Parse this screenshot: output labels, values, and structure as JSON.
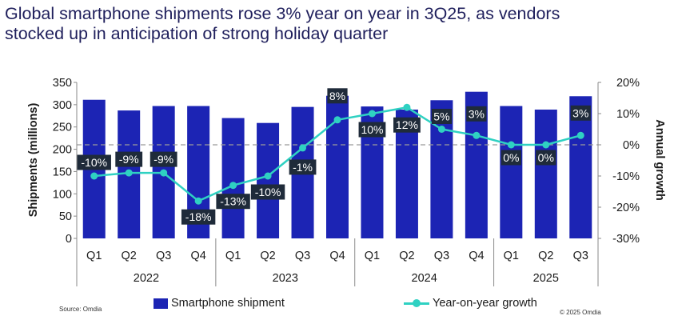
{
  "title": {
    "line1": "Global smartphone shipments rose 3% year on year in 3Q25, as vendors",
    "line2": "stocked up in anticipation of strong holiday quarter"
  },
  "source": "Source: Omdia",
  "copyright": "© 2025 Omdia",
  "colors": {
    "bar": "#1c24b4",
    "line": "#2fd1c2",
    "label_bg": "#1f2b3a",
    "label_text": "#ffffff"
  },
  "chart_data": {
    "type": "bar",
    "categories": [
      "Q1",
      "Q2",
      "Q3",
      "Q4",
      "Q1",
      "Q2",
      "Q3",
      "Q4",
      "Q1",
      "Q2",
      "Q3",
      "Q4",
      "Q1",
      "Q2",
      "Q3"
    ],
    "year_groups": [
      {
        "label": "2022",
        "count": 4
      },
      {
        "label": "2023",
        "count": 4
      },
      {
        "label": "2024",
        "count": 4
      },
      {
        "label": "2025",
        "count": 3
      }
    ],
    "series": [
      {
        "name": "Smartphone shipment",
        "type": "bar",
        "axis": "left",
        "values": [
          311,
          287,
          297,
          297,
          270,
          259,
          295,
          320,
          296,
          289,
          310,
          329,
          297,
          289,
          319
        ]
      },
      {
        "name": "Year-on-year growth",
        "type": "line",
        "axis": "right",
        "values": [
          -10,
          -9,
          -9,
          -18,
          -13,
          -10,
          -1,
          8,
          10,
          12,
          5,
          3,
          0,
          0,
          3
        ],
        "labels": [
          "-10%",
          "-9%",
          "-9%",
          "-18%",
          "-13%",
          "-10%",
          "-1%",
          "8%",
          "10%",
          "12%",
          "5%",
          "3%",
          "0%",
          "0%",
          "3%"
        ]
      }
    ],
    "ylabel": "Shipments (millions)",
    "y2label": "Annual growth",
    "ylim": [
      0,
      350
    ],
    "yticks": [
      "0",
      "50",
      "100",
      "150",
      "200",
      "250",
      "300",
      "350"
    ],
    "y2lim": [
      -30,
      20
    ],
    "y2ticks": [
      "-30%",
      "-20%",
      "-10%",
      "0%",
      "10%",
      "20%"
    ],
    "zero_reference_line": "dashed",
    "legend_position": "bottom"
  }
}
